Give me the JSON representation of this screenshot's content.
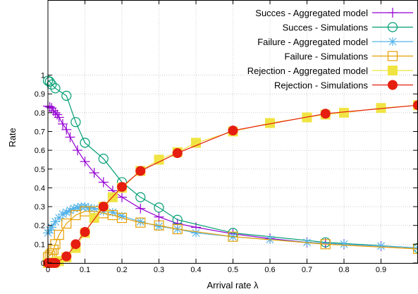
{
  "chart_data": {
    "type": "line",
    "title": "",
    "xlabel": "Arrival rate λ",
    "ylabel": "Rate",
    "xlim": [
      0,
      1
    ],
    "ylim": [
      0,
      1.4
    ],
    "grid": true,
    "legend_position": "top-right",
    "x_ticks": [
      0,
      0.1,
      0.2,
      0.3,
      0.4,
      0.5,
      0.6,
      0.7,
      0.8,
      0.9
    ],
    "x_tick_labels": [
      "0",
      "0.1",
      "0.2",
      "0.3",
      "0.4",
      "0.5",
      "0.6",
      "0.7",
      "0.8",
      "0.9"
    ],
    "y_ticks": [
      0,
      0.1,
      0.2,
      0.3,
      0.4,
      0.5,
      0.6,
      0.7,
      0.8,
      0.9,
      1
    ],
    "y_tick_labels": [
      "0",
      "0.1",
      "0.2",
      "0.3",
      "0.4",
      "0.5",
      "0.6",
      "0.7",
      "0.8",
      "0.9",
      "1"
    ],
    "series": [
      {
        "name": "Succes - Aggregated model",
        "color": "#9400D3",
        "marker": "plus",
        "x": [
          0,
          0.005,
          0.01,
          0.015,
          0.02,
          0.025,
          0.03,
          0.04,
          0.05,
          0.06,
          0.08,
          0.1,
          0.125,
          0.15,
          0.175,
          0.2,
          0.25,
          0.3,
          0.35,
          0.4,
          0.5,
          0.6,
          0.7,
          0.75,
          0.8,
          0.9,
          1.0
        ],
        "y": [
          0.835,
          0.83,
          0.825,
          0.81,
          0.8,
          0.79,
          0.775,
          0.74,
          0.71,
          0.67,
          0.6,
          0.54,
          0.48,
          0.43,
          0.385,
          0.35,
          0.29,
          0.245,
          0.21,
          0.19,
          0.155,
          0.13,
          0.11,
          0.105,
          0.1,
          0.09,
          0.08
        ]
      },
      {
        "name": "Succes - Simulations",
        "color": "#009E73",
        "marker": "circle-open",
        "x": [
          0,
          0.005,
          0.01,
          0.02,
          0.05,
          0.075,
          0.1,
          0.15,
          0.2,
          0.25,
          0.3,
          0.35,
          0.5,
          0.75,
          1.0
        ],
        "y": [
          0.97,
          0.965,
          0.95,
          0.93,
          0.89,
          0.75,
          0.64,
          0.555,
          0.43,
          0.35,
          0.295,
          0.23,
          0.16,
          0.11,
          0.08
        ]
      },
      {
        "name": "Failure - Aggregated model",
        "color": "#56B4E9",
        "marker": "asterisk",
        "x": [
          0,
          0.005,
          0.01,
          0.02,
          0.03,
          0.04,
          0.05,
          0.06,
          0.07,
          0.08,
          0.09,
          0.1,
          0.11,
          0.125,
          0.15,
          0.175,
          0.2,
          0.25,
          0.3,
          0.35,
          0.4,
          0.5,
          0.6,
          0.7,
          0.8,
          0.9,
          1.0
        ],
        "y": [
          0.16,
          0.175,
          0.19,
          0.22,
          0.24,
          0.26,
          0.27,
          0.28,
          0.29,
          0.295,
          0.3,
          0.3,
          0.295,
          0.29,
          0.275,
          0.27,
          0.25,
          0.22,
          0.195,
          0.18,
          0.16,
          0.14,
          0.125,
          0.11,
          0.1,
          0.09,
          0.08
        ]
      },
      {
        "name": "Failure - Simulations",
        "color": "#E69F00",
        "marker": "square-open",
        "x": [
          0,
          0.005,
          0.01,
          0.015,
          0.02,
          0.03,
          0.05,
          0.075,
          0.1,
          0.125,
          0.15,
          0.175,
          0.2,
          0.25,
          0.3,
          0.35,
          0.5,
          0.75,
          1.0
        ],
        "y": [
          0.03,
          0.04,
          0.05,
          0.07,
          0.1,
          0.15,
          0.21,
          0.255,
          0.275,
          0.275,
          0.265,
          0.255,
          0.24,
          0.215,
          0.2,
          0.18,
          0.14,
          0.1,
          0.075
        ]
      },
      {
        "name": "Rejection - Aggregated model",
        "color": "#F0E442",
        "marker": "square-filled",
        "x": [
          0,
          0.005,
          0.01,
          0.015,
          0.02,
          0.03,
          0.05,
          0.075,
          0.1,
          0.125,
          0.15,
          0.175,
          0.2,
          0.25,
          0.3,
          0.35,
          0.4,
          0.5,
          0.6,
          0.7,
          0.75,
          0.8,
          0.9,
          1.0
        ],
        "y": [
          0.0,
          0.0,
          0.0,
          0.0,
          0.005,
          0.01,
          0.03,
          0.08,
          0.16,
          0.24,
          0.3,
          0.35,
          0.4,
          0.49,
          0.55,
          0.59,
          0.64,
          0.7,
          0.745,
          0.775,
          0.79,
          0.8,
          0.825,
          0.84
        ]
      },
      {
        "name": "Rejection - Simulations",
        "color": "#E51E10",
        "marker": "circle-filled",
        "x": [
          0,
          0.005,
          0.01,
          0.015,
          0.02,
          0.05,
          0.075,
          0.1,
          0.15,
          0.2,
          0.25,
          0.35,
          0.5,
          0.75,
          1.0
        ],
        "y": [
          0.0,
          0.0,
          0.0,
          0.0,
          0.0,
          0.035,
          0.1,
          0.165,
          0.3,
          0.405,
          0.49,
          0.585,
          0.705,
          0.795,
          0.84
        ]
      }
    ]
  }
}
